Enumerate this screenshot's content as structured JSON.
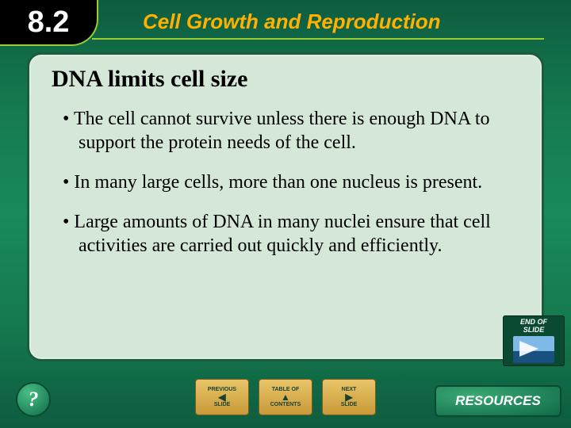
{
  "colors": {
    "page_bg_gradient": [
      "#0d5c3f",
      "#157a4f",
      "#1a8a5a",
      "#157a4f",
      "#0d5c3f"
    ],
    "chapter_tab_bg": "#000000",
    "chapter_tab_text": "#ffffff",
    "chapter_title_color": "#ffb000",
    "accent_line": "#9acd32",
    "panel_bg": "#d5e8d8",
    "panel_border": "#1a5c3c",
    "body_text": "#000000",
    "nav_btn_gradient": [
      "#e8c568",
      "#c99a38"
    ],
    "nav_btn_border": "#7a5c20",
    "nav_btn_text": "#1a4030",
    "help_gradient": [
      "#4abf86",
      "#0f6a47"
    ],
    "resources_gradient": [
      "#3aa874",
      "#0f6a47"
    ],
    "badge_bg": "#0a4a32"
  },
  "typography": {
    "chapter_number_fontsize": 38,
    "chapter_title_fontsize": 26,
    "slide_title_fontsize": 30,
    "bullet_fontsize": 24,
    "nav_label_fontsize": 7,
    "resources_fontsize": 17,
    "help_fontsize": 26
  },
  "header": {
    "chapter_number": "8.2",
    "chapter_title": "Cell Growth and Reproduction"
  },
  "slide": {
    "title": "DNA limits cell size",
    "bullets": [
      "The cell cannot survive unless there is enough DNA to support the protein needs of the cell.",
      "In many large cells, more than one nucleus is present.",
      "Large amounts of DNA in many nuclei ensure that cell activities are carried out quickly and efficiently."
    ]
  },
  "nav": {
    "prev_top": "PREVIOUS",
    "prev_bottom": "SLIDE",
    "contents_top": "TABLE OF",
    "contents_bottom": "CONTENTS",
    "next_top": "NEXT",
    "next_bottom": "SLIDE"
  },
  "buttons": {
    "help": "?",
    "resources": "RESOURCES"
  },
  "end_badge": {
    "line1": "END OF",
    "line2": "SLIDE"
  }
}
